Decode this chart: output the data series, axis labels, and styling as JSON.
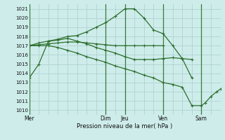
{
  "background_color": "#cdecea",
  "grid_color": "#aacfcd",
  "line_color": "#2d6e2d",
  "ylim": [
    1009.5,
    1021.5
  ],
  "yticks": [
    1010,
    1011,
    1012,
    1013,
    1014,
    1015,
    1016,
    1017,
    1018,
    1019,
    1020,
    1021
  ],
  "xlabel": "Pression niveau de la mer( hPa )",
  "day_labels": [
    "Mer",
    "Dim",
    "Jeu",
    "Ven",
    "Sam"
  ],
  "day_x": [
    0,
    4,
    5,
    7,
    9
  ],
  "vline_x": [
    0,
    4,
    5,
    7,
    9
  ],
  "xlim": [
    0,
    10
  ],
  "fine_grid_x": [
    0.5,
    1,
    1.5,
    2,
    2.5,
    3,
    3.5,
    4,
    4.5,
    5,
    5.5,
    6,
    6.5,
    7,
    7.5,
    8,
    8.5,
    9,
    9.5,
    10
  ],
  "series1": {
    "x": [
      0,
      0.5,
      1.0,
      1.5,
      2.0,
      2.5,
      3.0,
      3.5,
      4.0,
      4.5,
      5.0,
      5.5,
      6.0,
      6.5,
      7.0,
      7.5,
      8.0,
      8.5
    ],
    "y": [
      1013.5,
      1015.0,
      1017.5,
      1017.7,
      1018.0,
      1018.1,
      1018.5,
      1019.0,
      1019.5,
      1020.2,
      1021.0,
      1021.0,
      1020.0,
      1018.7,
      1018.3,
      1017.0,
      1015.6,
      1013.5
    ]
  },
  "series2": {
    "x": [
      0,
      0.5,
      1.0,
      1.5,
      2.0,
      2.5,
      3.0,
      3.5,
      4.0,
      4.5,
      5.0,
      5.5,
      6.0,
      6.5,
      7.0
    ],
    "y": [
      1017.0,
      1017.1,
      1017.2,
      1017.3,
      1017.4,
      1017.4,
      1017.3,
      1017.2,
      1017.1,
      1017.0,
      1017.0,
      1017.0,
      1017.0,
      1017.0,
      1017.0
    ]
  },
  "series3": {
    "x": [
      0,
      0.5,
      1.0,
      1.5,
      2.0,
      2.5,
      3.0,
      3.5,
      4.0,
      4.5,
      5.0,
      5.5,
      6.0,
      6.5,
      7.0,
      7.5,
      8.0,
      8.5
    ],
    "y": [
      1017.0,
      1017.3,
      1017.5,
      1017.6,
      1017.8,
      1017.5,
      1017.2,
      1016.8,
      1016.5,
      1016.2,
      1015.8,
      1015.5,
      1015.5,
      1015.5,
      1015.6,
      1015.7,
      1015.6,
      1015.5
    ]
  },
  "series4": {
    "x": [
      0,
      0.5,
      1.0,
      1.5,
      2.0,
      2.5,
      3.0,
      3.5,
      4.0,
      4.5,
      5.0,
      5.5,
      6.0,
      6.5,
      7.0,
      7.5,
      8.0,
      8.5,
      9.0,
      9.2,
      9.5,
      9.8,
      10.0
    ],
    "y": [
      1017.0,
      1017.0,
      1017.0,
      1016.8,
      1016.5,
      1016.2,
      1015.8,
      1015.5,
      1015.2,
      1014.8,
      1014.5,
      1014.2,
      1013.8,
      1013.5,
      1013.0,
      1012.8,
      1012.5,
      1010.5,
      1010.5,
      1010.8,
      1011.5,
      1012.0,
      1012.3
    ]
  }
}
